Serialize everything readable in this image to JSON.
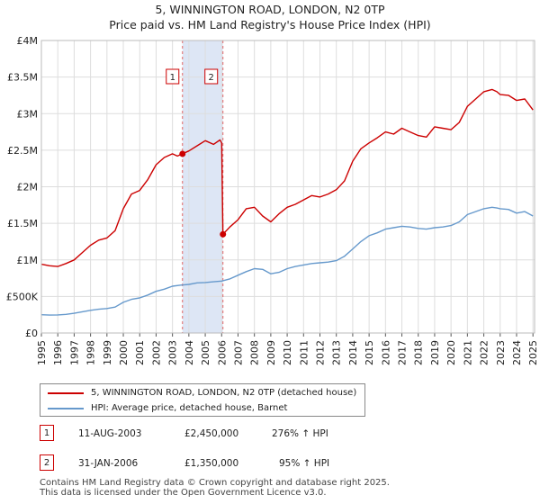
{
  "title_line1": "5, WINNINGTON ROAD, LONDON, N2 0TP",
  "title_line2": "Price paid vs. HM Land Registry's House Price Index (HPI)",
  "colors": {
    "property": "#cc0000",
    "hpi": "#6699cc",
    "shade": "#dde6f5",
    "grid": "#dddddd"
  },
  "chart_data": {
    "type": "line",
    "x_unit": "year",
    "xlim": [
      1995,
      2025.1
    ],
    "ylim": [
      0,
      4000000
    ],
    "y_ticks": [
      {
        "value": 0,
        "label": "£0"
      },
      {
        "value": 500000,
        "label": "£500K"
      },
      {
        "value": 1000000,
        "label": "£1M"
      },
      {
        "value": 1500000,
        "label": "£1.5M"
      },
      {
        "value": 2000000,
        "label": "£2M"
      },
      {
        "value": 2500000,
        "label": "£2.5M"
      },
      {
        "value": 3000000,
        "label": "£3M"
      },
      {
        "value": 3500000,
        "label": "£3.5M"
      },
      {
        "value": 4000000,
        "label": "£4M"
      }
    ],
    "x_ticks": [
      "1995",
      "1996",
      "1997",
      "1998",
      "1999",
      "2000",
      "2001",
      "2002",
      "2003",
      "2004",
      "2005",
      "2006",
      "2007",
      "2008",
      "2009",
      "2010",
      "2011",
      "2012",
      "2013",
      "2014",
      "2015",
      "2016",
      "2017",
      "2018",
      "2019",
      "2020",
      "2021",
      "2022",
      "2023",
      "2024",
      "2025"
    ],
    "grid": true,
    "shaded_range": [
      2003.61,
      2006.08
    ],
    "series": [
      {
        "name": "5, WINNINGTON ROAD, LONDON, N2 0TP (detached house)",
        "color": "#cc0000",
        "x": [
          1995.0,
          1995.5,
          1996.0,
          1996.5,
          1997.0,
          1997.5,
          1998.0,
          1998.5,
          1999.0,
          1999.5,
          2000.0,
          2000.5,
          2001.0,
          2001.5,
          2002.0,
          2002.5,
          2003.0,
          2003.3,
          2003.61,
          2004.0,
          2004.5,
          2005.0,
          2005.5,
          2005.9,
          2006.0,
          2006.08,
          2006.5,
          2007.0,
          2007.5,
          2008.0,
          2008.5,
          2009.0,
          2009.5,
          2010.0,
          2010.5,
          2011.0,
          2011.5,
          2012.0,
          2012.5,
          2013.0,
          2013.5,
          2014.0,
          2014.5,
          2015.0,
          2015.5,
          2016.0,
          2016.5,
          2017.0,
          2017.5,
          2018.0,
          2018.5,
          2019.0,
          2019.5,
          2020.0,
          2020.5,
          2021.0,
          2021.5,
          2022.0,
          2022.5,
          2022.8,
          2023.0,
          2023.5,
          2024.0,
          2024.5,
          2025.0
        ],
        "values": [
          940000,
          920000,
          910000,
          950000,
          1000000,
          1100000,
          1200000,
          1270000,
          1300000,
          1400000,
          1700000,
          1900000,
          1950000,
          2100000,
          2300000,
          2400000,
          2450000,
          2420000,
          2450000,
          2490000,
          2560000,
          2630000,
          2580000,
          2640000,
          2600000,
          1350000,
          1450000,
          1550000,
          1700000,
          1720000,
          1600000,
          1520000,
          1630000,
          1720000,
          1760000,
          1820000,
          1880000,
          1860000,
          1900000,
          1960000,
          2080000,
          2350000,
          2520000,
          2600000,
          2670000,
          2750000,
          2720000,
          2800000,
          2750000,
          2700000,
          2680000,
          2820000,
          2800000,
          2780000,
          2880000,
          3100000,
          3200000,
          3300000,
          3330000,
          3300000,
          3260000,
          3250000,
          3180000,
          3200000,
          3050000
        ]
      },
      {
        "name": "HPI: Average price, detached house, Barnet",
        "color": "#6699cc",
        "x": [
          1995.0,
          1995.5,
          1996.0,
          1996.5,
          1997.0,
          1997.5,
          1998.0,
          1998.5,
          1999.0,
          1999.5,
          2000.0,
          2000.5,
          2001.0,
          2001.5,
          2002.0,
          2002.5,
          2003.0,
          2003.5,
          2004.0,
          2004.5,
          2005.0,
          2005.5,
          2006.0,
          2006.5,
          2007.0,
          2007.5,
          2008.0,
          2008.5,
          2009.0,
          2009.5,
          2010.0,
          2010.5,
          2011.0,
          2011.5,
          2012.0,
          2012.5,
          2013.0,
          2013.5,
          2014.0,
          2014.5,
          2015.0,
          2015.5,
          2016.0,
          2016.5,
          2017.0,
          2017.5,
          2018.0,
          2018.5,
          2019.0,
          2019.5,
          2020.0,
          2020.5,
          2021.0,
          2021.5,
          2022.0,
          2022.5,
          2022.8,
          2023.0,
          2023.5,
          2024.0,
          2024.5,
          2025.0
        ],
        "values": [
          250000,
          245000,
          248000,
          255000,
          270000,
          290000,
          310000,
          325000,
          335000,
          355000,
          420000,
          460000,
          480000,
          520000,
          570000,
          600000,
          640000,
          655000,
          665000,
          685000,
          690000,
          700000,
          710000,
          740000,
          790000,
          840000,
          880000,
          870000,
          810000,
          830000,
          880000,
          910000,
          930000,
          950000,
          960000,
          970000,
          990000,
          1050000,
          1150000,
          1250000,
          1330000,
          1370000,
          1420000,
          1440000,
          1460000,
          1450000,
          1430000,
          1420000,
          1440000,
          1450000,
          1470000,
          1520000,
          1620000,
          1660000,
          1700000,
          1720000,
          1710000,
          1700000,
          1690000,
          1640000,
          1660000,
          1600000
        ]
      }
    ],
    "annotations": [
      {
        "label": "1",
        "x": 2003.61,
        "value": 2450000
      },
      {
        "label": "2",
        "x": 2006.08,
        "value": 1350000
      }
    ]
  },
  "legend": [
    {
      "label": "5, WINNINGTON ROAD, LONDON, N2 0TP (detached house)",
      "color": "#cc0000"
    },
    {
      "label": "HPI: Average price, detached house, Barnet",
      "color": "#6699cc"
    }
  ],
  "transactions": [
    {
      "num": "1",
      "date": "11-AUG-2003",
      "price": "£2,450,000",
      "hpi": "276% ↑ HPI"
    },
    {
      "num": "2",
      "date": "31-JAN-2006",
      "price": "£1,350,000",
      "hpi": "95% ↑ HPI"
    }
  ],
  "footer_line1": "Contains HM Land Registry data © Crown copyright and database right 2025.",
  "footer_line2": "This data is licensed under the Open Government Licence v3.0."
}
